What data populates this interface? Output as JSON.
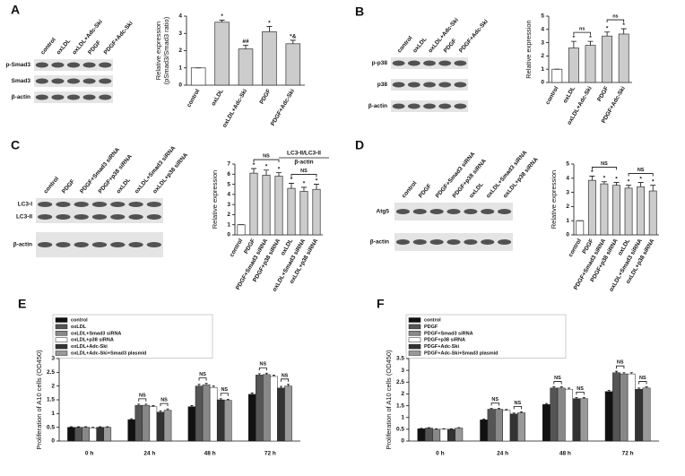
{
  "chart_data": [
    {
      "type": "bar",
      "panel": "A",
      "blot": {
        "lanes": [
          "control",
          "oxLDL",
          "oxLDL+Adc-Ski",
          "PDGF",
          "PDGF+Adc-Ski"
        ],
        "bands": [
          [
            "p-Smad3"
          ],
          [
            "Smad3"
          ],
          [
            "β-actin"
          ]
        ]
      },
      "ylabel": [
        "Relative expression",
        "(pSmad3/Smad3 ratio)"
      ],
      "categories": [
        "control",
        "oxLDL",
        "oxLDL+Adc-Ski",
        "PDGF",
        "PDGF+Adc-Ski"
      ],
      "values": [
        1,
        3.65,
        2.1,
        3.1,
        2.4
      ],
      "errors": [
        0,
        0.12,
        0.22,
        0.3,
        0.2
      ],
      "annotations": [
        null,
        "*",
        "##",
        "*",
        "*&"
      ],
      "color": "#cccccc",
      "ylim": [
        0,
        4
      ],
      "yticks": [
        0,
        1,
        2,
        3,
        4
      ]
    },
    {
      "type": "bar",
      "panel": "B",
      "blot": {
        "lanes": [
          "control",
          "oxLDL",
          "oxLDL+Adc-Ski",
          "PDGF",
          "PDGF+Adc-Ski"
        ],
        "bands": [
          [
            "p-p38"
          ],
          [
            "p38"
          ],
          [
            "β-actin"
          ]
        ]
      },
      "ylabel": [
        "Relative expression"
      ],
      "categories": [
        "control",
        "oxLDL",
        "oxLDL+Adc-Ski",
        "PDGF",
        "PDGF+Adc-Ski"
      ],
      "values": [
        1,
        2.6,
        2.8,
        3.5,
        3.65
      ],
      "errors": [
        0,
        0.5,
        0.3,
        0.3,
        0.4
      ],
      "annotations": [
        null,
        "*",
        "*",
        "*",
        "*"
      ],
      "brackets": [
        {
          "label": "ns",
          "span": [
            1,
            2
          ]
        },
        {
          "label": "ns",
          "span": [
            3,
            4
          ]
        }
      ],
      "color": "#cccccc",
      "ylim": [
        0,
        5
      ],
      "yticks": [
        0,
        1,
        2,
        3,
        4,
        5
      ]
    },
    {
      "type": "bar",
      "panel": "C",
      "blot": {
        "lanes": [
          "control",
          "PDGF",
          "PDGF+Smad3 siRNA",
          "PDGF+p38 siRNA",
          "oxLDL",
          "oxLDL+Smad3 siRNA",
          "oxLDL+p38 siRNA"
        ],
        "bands": [
          [
            "LC3-I",
            "LC3-II"
          ],
          [
            "β-actin"
          ]
        ]
      },
      "title": "LC3-II/LC3-II",
      "subtitle": "β-actin",
      "ylabel": [
        "Relative expression"
      ],
      "categories": [
        "control",
        "PDGF",
        "PDGF+Smad3 siRNA",
        "PDGF+p38 siRNA",
        "oxLDL",
        "oxLDL+Smad3 siRNA",
        "oxLDL+p38 siRNA"
      ],
      "values": [
        1,
        6.1,
        5.9,
        5.8,
        4.6,
        4.3,
        4.5
      ],
      "errors": [
        0,
        0.45,
        0.5,
        0.35,
        0.5,
        0.4,
        0.5
      ],
      "annotations": [
        null,
        "*",
        "*",
        "*",
        "*",
        "*",
        "*"
      ],
      "brackets": [
        {
          "label": "NS",
          "span": [
            1,
            3
          ]
        },
        {
          "label": "NS",
          "span": [
            4,
            6
          ]
        }
      ],
      "color": "#cccccc",
      "ylim": [
        0,
        7
      ],
      "yticks": [
        0,
        1,
        2,
        3,
        4,
        5,
        6,
        7
      ]
    },
    {
      "type": "bar",
      "panel": "D",
      "blot": {
        "lanes": [
          "control",
          "PDGF",
          "PDGF+Smad3 siRNA",
          "PDGF+p38 siRNA",
          "oxLDL",
          "oxLDL+Smad3 siRNA",
          "oxLDL+p38 siRNA"
        ],
        "bands": [
          [
            "Atg5"
          ],
          [
            "β-actin"
          ]
        ]
      },
      "ylabel": [
        "Relative expression"
      ],
      "categories": [
        "control",
        "PDGF",
        "PDGF+Smad3 siRNA",
        "PDGF+p38 siRNA",
        "oxLDL",
        "oxLDL+Smad3 siRNA",
        "oxLDL+p38 siRNA"
      ],
      "values": [
        1,
        3.85,
        3.6,
        3.5,
        3.3,
        3.4,
        3.1
      ],
      "errors": [
        0,
        0.3,
        0.15,
        0.2,
        0.2,
        0.3,
        0.4
      ],
      "annotations": [
        null,
        "*",
        "*",
        "*",
        "*",
        "*",
        "*"
      ],
      "brackets": [
        {
          "label": "NS",
          "span": [
            1,
            3
          ]
        },
        {
          "label": "NS",
          "span": [
            4,
            6
          ]
        }
      ],
      "color": "#cccccc",
      "ylim": [
        0,
        5
      ],
      "yticks": [
        0,
        1,
        2,
        3,
        4,
        5
      ]
    },
    {
      "type": "grouped_bar",
      "panel": "E",
      "ylabel": [
        "Proliferation of A10 cells (OD450)"
      ],
      "categories": [
        "0 h",
        "24 h",
        "48 h",
        "72 h"
      ],
      "series": [
        {
          "name": "control",
          "color": "#111111",
          "values": [
            0.5,
            0.78,
            1.25,
            1.7
          ],
          "errors": [
            0.02,
            0.03,
            0.04,
            0.05
          ]
        },
        {
          "name": "oxLDL",
          "color": "#555555",
          "values": [
            0.5,
            1.3,
            2.0,
            2.4
          ],
          "errors": [
            0.02,
            0.04,
            0.06,
            0.05
          ]
        },
        {
          "name": "oxLDL+Smad3 siRNA",
          "color": "#888888",
          "values": [
            0.5,
            1.3,
            2.05,
            2.42
          ],
          "errors": [
            0.02,
            0.04,
            0.05,
            0.05
          ]
        },
        {
          "name": "oxLDL+p38 siRNA",
          "color": "#ffffff",
          "values": [
            0.48,
            1.25,
            1.95,
            2.35
          ],
          "errors": [
            0.02,
            0.04,
            0.05,
            0.05
          ]
        },
        {
          "name": "oxLDL+Adc-Ski",
          "color": "#333333",
          "values": [
            0.5,
            1.05,
            1.5,
            1.93
          ],
          "errors": [
            0.02,
            0.05,
            0.04,
            0.06
          ]
        },
        {
          "name": "oxLDL+Adc-Ski+Smad3 plasmid",
          "color": "#999999",
          "values": [
            0.5,
            1.12,
            1.48,
            2.0
          ],
          "errors": [
            0.02,
            0.05,
            0.04,
            0.06
          ]
        }
      ],
      "brackets": [
        {
          "label": "NS",
          "group": 1,
          "span": [
            1,
            2
          ]
        },
        {
          "label": "NS",
          "group": 1,
          "span": [
            4,
            5
          ]
        },
        {
          "label": "NS",
          "group": 2,
          "span": [
            1,
            2
          ]
        },
        {
          "label": "NS",
          "group": 2,
          "span": [
            4,
            5
          ]
        },
        {
          "label": "NS",
          "group": 3,
          "span": [
            1,
            2
          ]
        },
        {
          "label": "NS",
          "group": 3,
          "span": [
            4,
            5
          ]
        }
      ],
      "ylim": [
        0,
        3
      ],
      "yticks": [
        0,
        0.5,
        1,
        1.5,
        2,
        2.5,
        3
      ]
    },
    {
      "type": "grouped_bar",
      "panel": "F",
      "ylabel": [
        "Proliferation of A10 cells (OD450)"
      ],
      "categories": [
        "0 h",
        "24 h",
        "48 h",
        "72 h"
      ],
      "series": [
        {
          "name": "control",
          "color": "#111111",
          "values": [
            0.52,
            0.9,
            1.55,
            2.1
          ],
          "errors": [
            0.02,
            0.03,
            0.04,
            0.05
          ]
        },
        {
          "name": "PDGF",
          "color": "#555555",
          "values": [
            0.55,
            1.35,
            2.25,
            2.9
          ],
          "errors": [
            0.02,
            0.04,
            0.05,
            0.06
          ]
        },
        {
          "name": "PDGF+Smad3 siRNA",
          "color": "#888888",
          "values": [
            0.5,
            1.35,
            2.25,
            2.85
          ],
          "errors": [
            0.02,
            0.04,
            0.05,
            0.05
          ]
        },
        {
          "name": "PDGF+p38 siRNA",
          "color": "#ffffff",
          "values": [
            0.5,
            1.3,
            2.2,
            2.85
          ],
          "errors": [
            0.02,
            0.04,
            0.05,
            0.05
          ]
        },
        {
          "name": "PDGF+Adc-Ski",
          "color": "#333333",
          "values": [
            0.5,
            1.15,
            1.8,
            2.2
          ],
          "errors": [
            0.02,
            0.04,
            0.05,
            0.05
          ]
        },
        {
          "name": "PDGF+Adc-Ski+Smad3 plasmid",
          "color": "#999999",
          "values": [
            0.55,
            1.2,
            1.8,
            2.25
          ],
          "errors": [
            0.02,
            0.04,
            0.05,
            0.05
          ]
        }
      ],
      "brackets": [
        {
          "label": "NS",
          "group": 1,
          "span": [
            1,
            2
          ]
        },
        {
          "label": "NS",
          "group": 1,
          "span": [
            4,
            5
          ]
        },
        {
          "label": "NS",
          "group": 2,
          "span": [
            1,
            2
          ]
        },
        {
          "label": "NS",
          "group": 2,
          "span": [
            4,
            5
          ]
        },
        {
          "label": "NS",
          "group": 3,
          "span": [
            1,
            2
          ]
        },
        {
          "label": "NS",
          "group": 3,
          "span": [
            4,
            5
          ]
        }
      ],
      "ylim": [
        0,
        3.5
      ],
      "yticks": [
        0,
        0.5,
        1,
        1.5,
        2,
        2.5,
        3,
        3.5
      ]
    }
  ]
}
